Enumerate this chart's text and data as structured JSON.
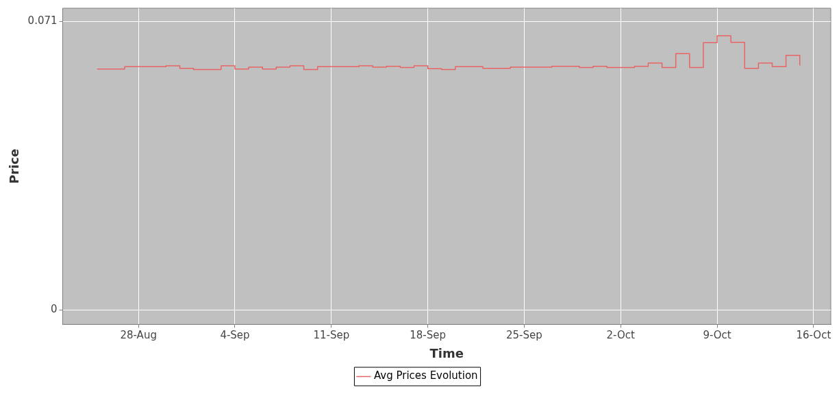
{
  "chart_data": {
    "type": "step",
    "xlabel": "Time",
    "ylabel": "Price",
    "x": [
      "--08-25",
      "--08-26",
      "--08-27",
      "--08-28",
      "--08-29",
      "--08-30",
      "--08-31",
      "--09-01",
      "--09-02",
      "--09-03",
      "--09-04",
      "--09-05",
      "--09-06",
      "--09-07",
      "--09-08",
      "--09-09",
      "--09-10",
      "--09-11",
      "--09-12",
      "--09-13",
      "--09-14",
      "--09-15",
      "--09-16",
      "--09-17",
      "--09-18",
      "--09-19",
      "--09-20",
      "--09-21",
      "--09-22",
      "--09-23",
      "--09-24",
      "--09-25",
      "--09-26",
      "--09-27",
      "--09-28",
      "--09-29",
      "--09-30",
      "--10-01",
      "--10-02",
      "--10-03",
      "--10-04",
      "--10-05",
      "--10-06",
      "--10-07",
      "--10-08",
      "--10-09",
      "--10-10",
      "--10-11",
      "--10-12",
      "--10-13",
      "--10-14",
      "--10-15"
    ],
    "series": [
      {
        "name": "Avg Prices Evolution",
        "color": "#e86464",
        "values": [
          0.0593,
          0.0593,
          0.0599,
          0.0599,
          0.0599,
          0.0601,
          0.0595,
          0.0592,
          0.0592,
          0.0601,
          0.0593,
          0.0598,
          0.0593,
          0.0598,
          0.0601,
          0.0592,
          0.0599,
          0.0599,
          0.0599,
          0.0601,
          0.0598,
          0.06,
          0.0597,
          0.0601,
          0.0594,
          0.0592,
          0.0599,
          0.0599,
          0.0595,
          0.0595,
          0.0598,
          0.0598,
          0.0598,
          0.06,
          0.06,
          0.0597,
          0.06,
          0.0597,
          0.0597,
          0.06,
          0.0608,
          0.0597,
          0.0631,
          0.0597,
          0.0658,
          0.0675,
          0.0659,
          0.0595,
          0.0608,
          0.0599,
          0.0627,
          0.0602
        ]
      }
    ],
    "xlim": [
      "--08-22T12:00",
      "--10-17T06:00"
    ],
    "xticks": [
      {
        "value": "--08-28",
        "label": "28-Aug"
      },
      {
        "value": "--09-04",
        "label": "4-Sep"
      },
      {
        "value": "--09-11",
        "label": "11-Sep"
      },
      {
        "value": "--09-18",
        "label": "18-Sep"
      },
      {
        "value": "--09-25",
        "label": "25-Sep"
      },
      {
        "value": "--10-02",
        "label": "2-Oct"
      },
      {
        "value": "--10-09",
        "label": "9-Oct"
      },
      {
        "value": "--10-16",
        "label": "16-Oct"
      }
    ],
    "ylim": [
      -0.0036,
      0.0743
    ],
    "yticks": [
      0,
      0.071
    ],
    "grid": true,
    "legend": "bottom",
    "marker": "none",
    "line_style": "solid"
  }
}
